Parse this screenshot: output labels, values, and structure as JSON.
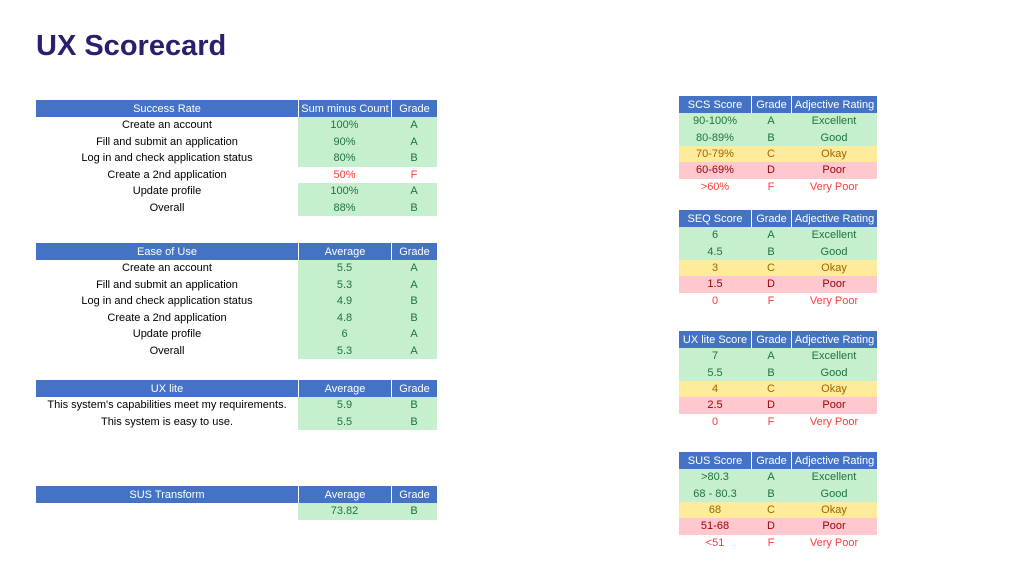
{
  "page": {
    "title": "UX Scorecard"
  },
  "colors": {
    "title_color": "#28206C",
    "header_bg": "#4472C4",
    "header_text": "#FFFFFF",
    "good_bg": "#C6EFCE",
    "good_text": "#1F7145",
    "okay_bg": "#FFEB9C",
    "okay_text": "#9C6500",
    "poor_bg": "#FFC7CE",
    "poor_text": "#9C0006",
    "fail_bg": "#FFFFFF",
    "fail_text": "#FF3B3B"
  },
  "left_tables": [
    {
      "id": "success-rate",
      "header": {
        "title": "Success Rate",
        "value": "Sum minus Count",
        "grade": "Grade"
      },
      "rows": [
        {
          "label": "Create an account",
          "value": "100%",
          "grade": "A",
          "style": "good"
        },
        {
          "label": "Fill and submit an application",
          "value": "90%",
          "grade": "A",
          "style": "good"
        },
        {
          "label": "Log in and check application status",
          "value": "80%",
          "grade": "B",
          "style": "good"
        },
        {
          "label": "Create a 2nd application",
          "value": "50%",
          "grade": "F",
          "style": "fail"
        },
        {
          "label": "Update profile",
          "value": "100%",
          "grade": "A",
          "style": "good"
        },
        {
          "label": "Overall",
          "value": "88%",
          "grade": "B",
          "style": "good"
        }
      ]
    },
    {
      "id": "ease-of-use",
      "header": {
        "title": "Ease of Use",
        "value": "Average",
        "grade": "Grade"
      },
      "rows": [
        {
          "label": "Create an account",
          "value": "5.5",
          "grade": "A",
          "style": "good"
        },
        {
          "label": "Fill and submit an application",
          "value": "5.3",
          "grade": "A",
          "style": "good"
        },
        {
          "label": "Log in and check application status",
          "value": "4.9",
          "grade": "B",
          "style": "good"
        },
        {
          "label": "Create a 2nd application",
          "value": "4.8",
          "grade": "B",
          "style": "good"
        },
        {
          "label": "Update profile",
          "value": "6",
          "grade": "A",
          "style": "good"
        },
        {
          "label": "Overall",
          "value": "5.3",
          "grade": "A",
          "style": "good"
        }
      ]
    },
    {
      "id": "ux-lite",
      "header": {
        "title": "UX lite",
        "value": "Average",
        "grade": "Grade"
      },
      "rows": [
        {
          "label": "This system's capabilities meet my requirements.",
          "value": "5.9",
          "grade": "B",
          "style": "good"
        },
        {
          "label": "This system is easy to use.",
          "value": "5.5",
          "grade": "B",
          "style": "good"
        }
      ]
    },
    {
      "id": "sus-transform",
      "header": {
        "title": "SUS Transform",
        "value": "Average",
        "grade": "Grade"
      },
      "rows": [
        {
          "label": "",
          "value": "73.82",
          "grade": "B",
          "style": "good"
        }
      ]
    }
  ],
  "right_tables": [
    {
      "id": "scs-score",
      "header": {
        "score": "SCS Score",
        "grade": "Grade",
        "rating": "Adjective Rating"
      },
      "rows": [
        {
          "score": "90-100%",
          "grade": "A",
          "rating": "Excellent",
          "style": "good"
        },
        {
          "score": "80-89%",
          "grade": "B",
          "rating": "Good",
          "style": "good"
        },
        {
          "score": "70-79%",
          "grade": "C",
          "rating": "Okay",
          "style": "okay"
        },
        {
          "score": "60-69%",
          "grade": "D",
          "rating": "Poor",
          "style": "poor"
        },
        {
          "score": ">60%",
          "grade": "F",
          "rating": "Very Poor",
          "style": "fail"
        }
      ]
    },
    {
      "id": "seq-score",
      "header": {
        "score": "SEQ Score",
        "grade": "Grade",
        "rating": "Adjective Rating"
      },
      "rows": [
        {
          "score": "6",
          "grade": "A",
          "rating": "Excellent",
          "style": "good"
        },
        {
          "score": "4.5",
          "grade": "B",
          "rating": "Good",
          "style": "good"
        },
        {
          "score": "3",
          "grade": "C",
          "rating": "Okay",
          "style": "okay"
        },
        {
          "score": "1.5",
          "grade": "D",
          "rating": "Poor",
          "style": "poor"
        },
        {
          "score": "0",
          "grade": "F",
          "rating": "Very Poor",
          "style": "fail"
        }
      ]
    },
    {
      "id": "ux-lite-score",
      "header": {
        "score": "UX lite Score",
        "grade": "Grade",
        "rating": "Adjective Rating"
      },
      "rows": [
        {
          "score": "7",
          "grade": "A",
          "rating": "Excellent",
          "style": "good"
        },
        {
          "score": "5.5",
          "grade": "B",
          "rating": "Good",
          "style": "good"
        },
        {
          "score": "4",
          "grade": "C",
          "rating": "Okay",
          "style": "okay"
        },
        {
          "score": "2.5",
          "grade": "D",
          "rating": "Poor",
          "style": "poor"
        },
        {
          "score": "0",
          "grade": "F",
          "rating": "Very Poor",
          "style": "fail"
        }
      ]
    },
    {
      "id": "sus-score",
      "header": {
        "score": "SUS Score",
        "grade": "Grade",
        "rating": "Adjective Rating"
      },
      "rows": [
        {
          "score": ">80.3",
          "grade": "A",
          "rating": "Excellent",
          "style": "good"
        },
        {
          "score": "68 - 80.3",
          "grade": "B",
          "rating": "Good",
          "style": "good"
        },
        {
          "score": "68",
          "grade": "C",
          "rating": "Okay",
          "style": "okay"
        },
        {
          "score": "51-68",
          "grade": "D",
          "rating": "Poor",
          "style": "poor"
        },
        {
          "score": "<51",
          "grade": "F",
          "rating": "Very Poor",
          "style": "fail"
        }
      ]
    }
  ]
}
